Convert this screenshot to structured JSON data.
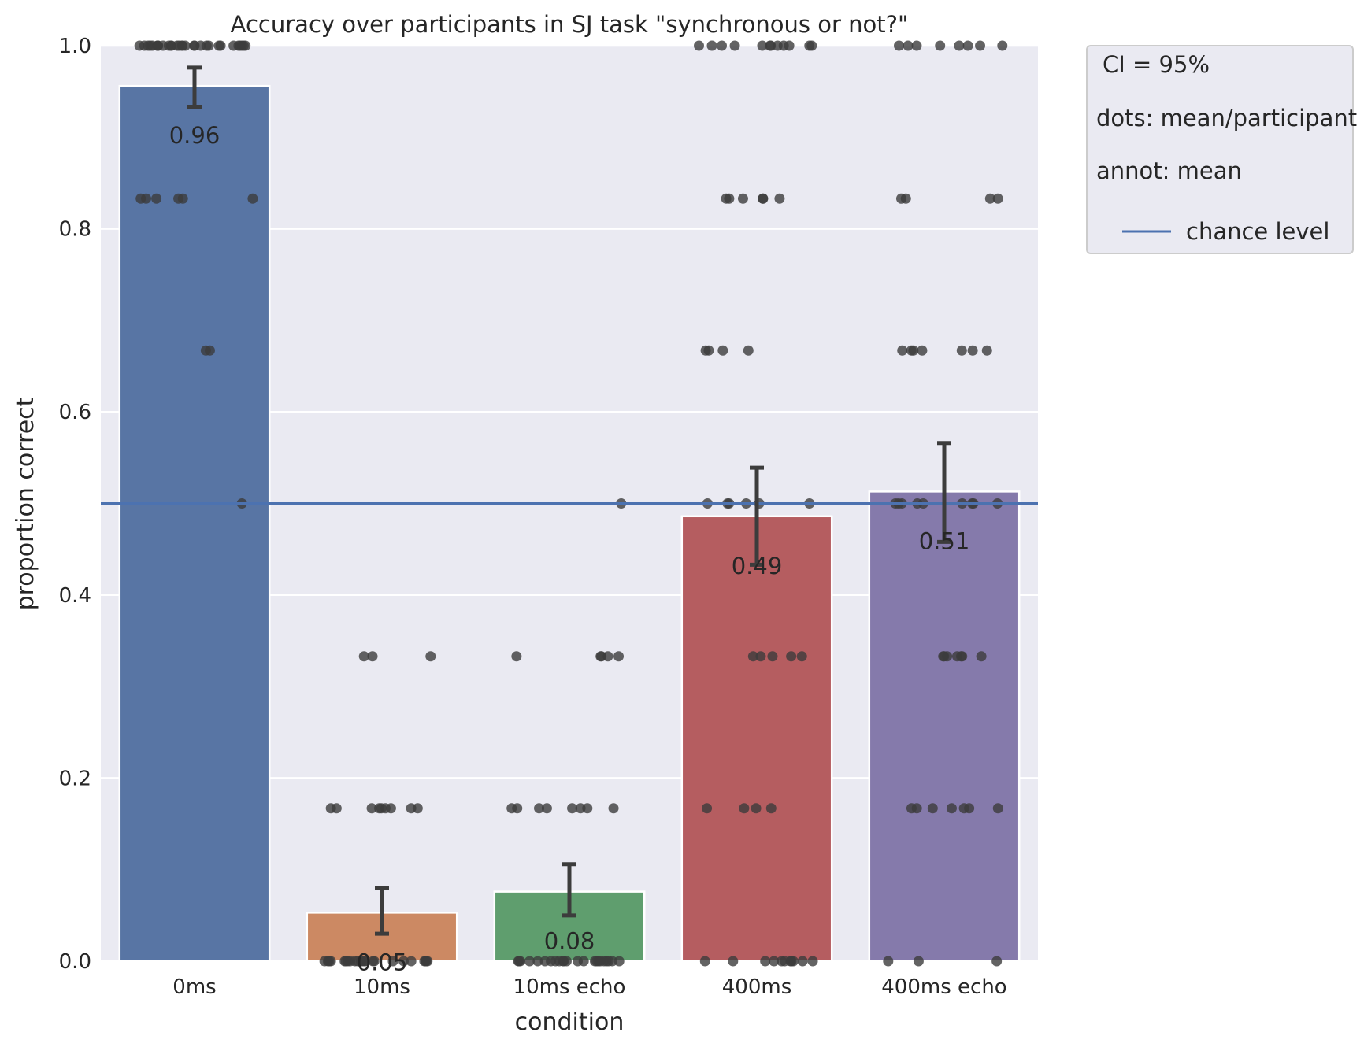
{
  "chart_data": {
    "type": "bar",
    "title": "Accuracy over participants in SJ task \"synchronous or not?\"",
    "xlabel": "condition",
    "ylabel": "proportion correct",
    "ylim": [
      0,
      1
    ],
    "yticks": [
      "0.0",
      "0.2",
      "0.4",
      "0.6",
      "0.8",
      "1.0"
    ],
    "grid": true,
    "categories": [
      "0ms",
      "10ms",
      "10ms echo",
      "400ms",
      "400ms echo"
    ],
    "values": [
      0.956,
      0.053,
      0.076,
      0.486,
      0.513
    ],
    "value_labels": [
      "0.96",
      "0.05",
      "0.08",
      "0.49",
      "0.51"
    ],
    "ci_low": [
      0.933,
      0.03,
      0.05,
      0.433,
      0.458
    ],
    "ci_high": [
      0.976,
      0.08,
      0.106,
      0.539,
      0.566
    ],
    "colors": [
      "#5875a4",
      "#cc8963",
      "#5f9e6e",
      "#b55d60",
      "#857aab"
    ],
    "chance_level": 0.5,
    "chance_color": "#4c72b0",
    "participant_means": [
      [
        1,
        1,
        1,
        1,
        1,
        1,
        1,
        1,
        1,
        1,
        1,
        1,
        1,
        1,
        1,
        1,
        1,
        1,
        1,
        1,
        1,
        1,
        1,
        1,
        1,
        1,
        1,
        1,
        1,
        1,
        0.833,
        0.833,
        0.833,
        0.833,
        0.833,
        0.833,
        0.667,
        0.667,
        0.5
      ],
      [
        0.333,
        0.333,
        0.333,
        0.167,
        0.167,
        0.167,
        0.167,
        0.167,
        0.167,
        0.167,
        0.167,
        0.167,
        0,
        0,
        0,
        0,
        0,
        0,
        0,
        0,
        0,
        0,
        0,
        0,
        0,
        0,
        0,
        0,
        0,
        0,
        0,
        0,
        0,
        0,
        0
      ],
      [
        0.5,
        0.333,
        0.333,
        0.333,
        0.333,
        0.333,
        0.167,
        0.167,
        0.167,
        0.167,
        0.167,
        0.167,
        0.167,
        0.167,
        0,
        0,
        0,
        0,
        0,
        0,
        0,
        0,
        0,
        0,
        0,
        0,
        0,
        0,
        0,
        0,
        0,
        0,
        0,
        0,
        0,
        0,
        0
      ],
      [
        1,
        1,
        1,
        1,
        1,
        1,
        1,
        1,
        1,
        1,
        1,
        1,
        0.833,
        0.833,
        0.833,
        0.833,
        0.833,
        0.833,
        0.667,
        0.667,
        0.667,
        0.667,
        0.5,
        0.5,
        0.5,
        0.5,
        0.5,
        0.5,
        0.333,
        0.333,
        0.333,
        0.333,
        0.333,
        0.167,
        0.167,
        0.167,
        0.167,
        0,
        0,
        0,
        0,
        0,
        0,
        0,
        0,
        0,
        0,
        0
      ],
      [
        1,
        1,
        1,
        1,
        1,
        1,
        1,
        1,
        0.833,
        0.833,
        0.833,
        0.833,
        0.667,
        0.667,
        0.667,
        0.667,
        0.667,
        0.667,
        0.667,
        0.5,
        0.5,
        0.5,
        0.5,
        0.5,
        0.5,
        0.5,
        0.5,
        0.5,
        0.333,
        0.333,
        0.333,
        0.333,
        0.333,
        0.333,
        0.333,
        0.167,
        0.167,
        0.167,
        0.167,
        0.167,
        0.167,
        0.167,
        0,
        0,
        0
      ]
    ],
    "legend": {
      "placement": "outside-right",
      "lines": [
        "CI = 95%",
        "dots: mean/participant",
        "annot: mean"
      ],
      "series_label": "chance level"
    }
  }
}
